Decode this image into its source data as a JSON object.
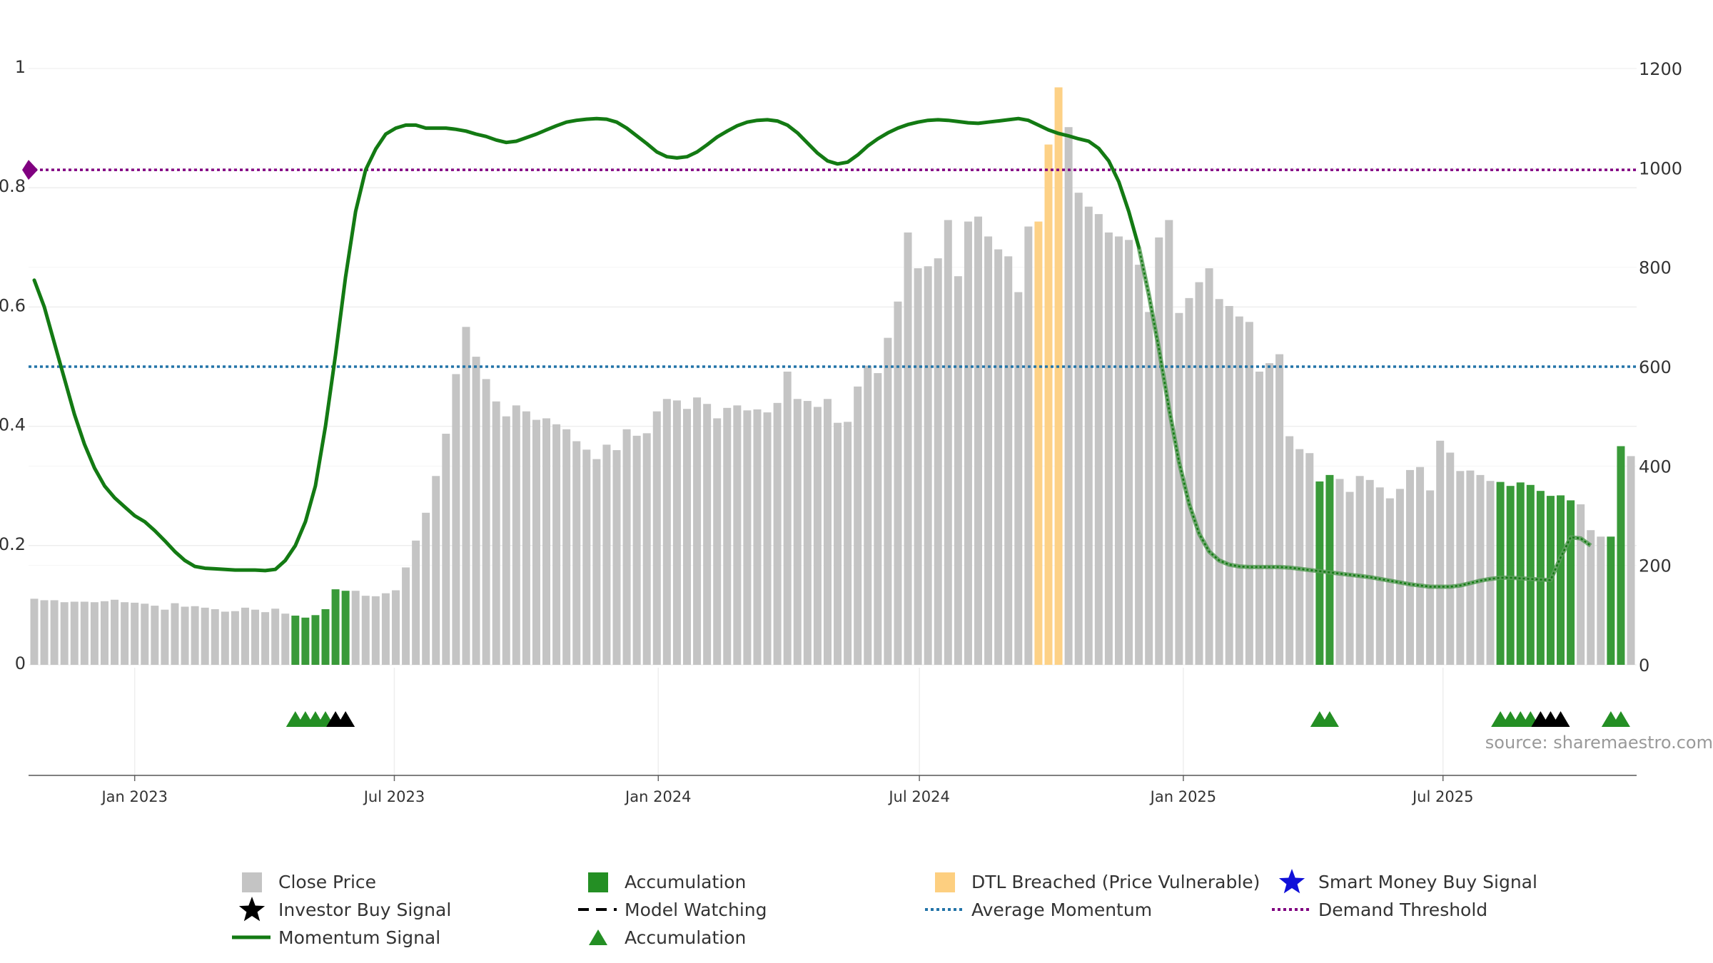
{
  "colors": {
    "close_price": "#c4c4c4",
    "accumulation": "#248f24",
    "dtl": "#fdcf80",
    "momentum": "#137a13",
    "average": "#2374a8",
    "demand": "#800080",
    "investor": "#000000",
    "smart_money": "#1010d8",
    "grid": "#eeeeee",
    "axis_text": "#333333",
    "source_text": "#999999"
  },
  "source_text": "source: sharemaestro.com",
  "chart_data": {
    "type": "bar+line",
    "x_start": "2022-10-23",
    "bar_interval_days": 7,
    "left_axis": {
      "range": [
        0,
        1
      ],
      "ticks": [
        0,
        0.2,
        0.4,
        0.6,
        0.8,
        1
      ],
      "tick_labels": [
        "0",
        "0.2",
        "0.4",
        "0.6",
        "0.8",
        "1"
      ]
    },
    "right_axis": {
      "range": [
        0,
        1200
      ],
      "ticks": [
        0,
        200,
        400,
        600,
        800,
        1000,
        1200
      ],
      "tick_labels": [
        "0",
        "200",
        "400",
        "600",
        "800",
        "1000",
        "1200"
      ]
    },
    "x_ticks": [
      {
        "date": "2023-01-01",
        "label": "Jan 2023"
      },
      {
        "date": "2023-07-01",
        "label": "Jul 2023"
      },
      {
        "date": "2024-01-01",
        "label": "Jan 2024"
      },
      {
        "date": "2024-07-01",
        "label": "Jul 2024"
      },
      {
        "date": "2025-01-01",
        "label": "Jan 2025"
      },
      {
        "date": "2025-07-01",
        "label": "Jul 2025"
      }
    ],
    "close_price": [
      133,
      130,
      130,
      126,
      127,
      127,
      126,
      128,
      131,
      126,
      125,
      123,
      119,
      111,
      124,
      117,
      118,
      115,
      112,
      107,
      108,
      115,
      111,
      106,
      113,
      103,
      99,
      95,
      100,
      112,
      152,
      149,
      149,
      139,
      138,
      144,
      150,
      196,
      250,
      306,
      380,
      465,
      585,
      680,
      620,
      575,
      530,
      500,
      522,
      510,
      493,
      496,
      484,
      474,
      450,
      433,
      414,
      443,
      432,
      474,
      461,
      466,
      510,
      535,
      532,
      515,
      538,
      525,
      496,
      517,
      522,
      512,
      514,
      508,
      527,
      590,
      535,
      531,
      519,
      535,
      487,
      489,
      560,
      602,
      587,
      658,
      731,
      870,
      798,
      802,
      818,
      895,
      782,
      892,
      902,
      862,
      836,
      822,
      750,
      882,
      892,
      1047,
      1162,
      1082,
      950,
      922,
      907,
      870,
      862,
      855,
      805,
      710,
      860,
      895,
      708,
      738,
      770,
      798,
      736,
      722,
      701,
      690,
      590,
      607,
      625,
      460,
      434,
      426,
      369,
      382,
      374,
      348,
      380,
      372,
      357,
      335,
      354,
      392,
      398,
      351,
      451,
      427,
      390,
      391,
      382,
      370,
      368,
      360,
      367,
      362,
      350,
      340,
      341,
      331,
      323,
      271,
      258,
      258,
      440,
      420
    ],
    "dtl_breached_indices": [
      100,
      101,
      102
    ],
    "accumulation_bar_indices": [
      26,
      27,
      28,
      29,
      30,
      31,
      128,
      129,
      146,
      147,
      148,
      149,
      150,
      151,
      152,
      153,
      157,
      158
    ],
    "momentum_signal": [
      0.645,
      0.6,
      0.54,
      0.48,
      0.42,
      0.37,
      0.33,
      0.3,
      0.28,
      0.265,
      0.25,
      0.24,
      0.225,
      0.208,
      0.19,
      0.175,
      0.165,
      0.162,
      0.161,
      0.16,
      0.159,
      0.159,
      0.159,
      0.158,
      0.16,
      0.175,
      0.2,
      0.24,
      0.3,
      0.4,
      0.52,
      0.65,
      0.76,
      0.83,
      0.865,
      0.89,
      0.9,
      0.905,
      0.905,
      0.9,
      0.9,
      0.9,
      0.898,
      0.895,
      0.89,
      0.886,
      0.88,
      0.876,
      0.878,
      0.884,
      0.89,
      0.897,
      0.904,
      0.91,
      0.913,
      0.915,
      0.916,
      0.915,
      0.91,
      0.9,
      0.887,
      0.874,
      0.86,
      0.852,
      0.85,
      0.852,
      0.86,
      0.872,
      0.885,
      0.895,
      0.904,
      0.91,
      0.913,
      0.914,
      0.912,
      0.905,
      0.892,
      0.875,
      0.858,
      0.845,
      0.84,
      0.843,
      0.855,
      0.87,
      0.882,
      0.892,
      0.9,
      0.906,
      0.91,
      0.913,
      0.914,
      0.913,
      0.911,
      0.909,
      0.908,
      0.91,
      0.912,
      0.914,
      0.916,
      0.913,
      0.905,
      0.897,
      0.891,
      0.887,
      0.882,
      0.878,
      0.866,
      0.845,
      0.81,
      0.76,
      0.7,
      0.62,
      0.53,
      0.43,
      0.34,
      0.27,
      0.22,
      0.19,
      0.175,
      0.168,
      0.165,
      0.164,
      0.164,
      0.164,
      0.164,
      0.163,
      0.161,
      0.159,
      0.157,
      0.155,
      0.153,
      0.151,
      0.149,
      0.147,
      0.144,
      0.141,
      0.138,
      0.135,
      0.133,
      0.131,
      0.131,
      0.131,
      0.133,
      0.137,
      0.141,
      0.144,
      0.146,
      0.146,
      0.145,
      0.144,
      0.143,
      0.142,
      0.18,
      0.214,
      0.212,
      0.2
    ],
    "momentum_solid_until_index": 110,
    "average_momentum": 0.5,
    "demand_threshold": 0.83,
    "accumulation_signal_indices": [
      26,
      27,
      28,
      29,
      128,
      129,
      146,
      147,
      148,
      149,
      157,
      158
    ],
    "investor_buy_signal_indices": [
      30,
      31,
      150,
      151,
      152
    ],
    "legend": [
      {
        "label": "Close Price",
        "symbol": "square",
        "color_key": "close_price",
        "column": 0,
        "row": 0
      },
      {
        "label": "Investor Buy Signal",
        "symbol": "star",
        "color_key": "investor",
        "column": 0,
        "row": 1
      },
      {
        "label": "Momentum Signal",
        "symbol": "line",
        "color_key": "momentum",
        "column": 0,
        "row": 2
      },
      {
        "label": "Accumulation",
        "symbol": "square",
        "color_key": "accumulation",
        "column": 1,
        "row": 0
      },
      {
        "label": "Model Watching",
        "symbol": "dash",
        "color_key": "investor",
        "column": 1,
        "row": 1
      },
      {
        "label": "Accumulation",
        "symbol": "triangle",
        "color_key": "accumulation",
        "column": 1,
        "row": 2
      },
      {
        "label": "DTL Breached (Price Vulnerable)",
        "symbol": "square",
        "color_key": "dtl",
        "column": 2,
        "row": 0
      },
      {
        "label": "Average Momentum",
        "symbol": "dotted",
        "color_key": "average",
        "column": 2,
        "row": 1
      },
      {
        "label": "Smart Money Buy Signal",
        "symbol": "star",
        "color_key": "smart_money",
        "column": 3,
        "row": 0
      },
      {
        "label": "Demand Threshold",
        "symbol": "dotted",
        "color_key": "demand",
        "column": 3,
        "row": 1
      }
    ]
  }
}
